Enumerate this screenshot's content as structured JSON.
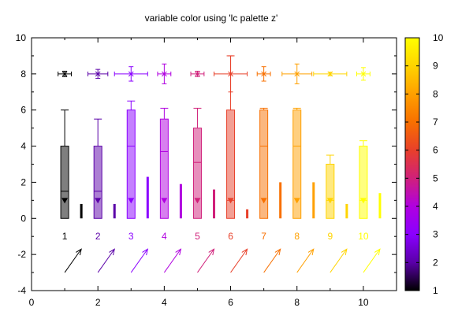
{
  "chart_data": {
    "type": "box",
    "title": "variable color using 'lc palette z'",
    "xlim": [
      0,
      11
    ],
    "ylim": [
      -4,
      10
    ],
    "xticks": [
      "0",
      "2",
      "4",
      "6",
      "8",
      "10"
    ],
    "yticks": [
      "-4",
      "-2",
      "0",
      "2",
      "4",
      "6",
      "8",
      "10"
    ],
    "colorbar": {
      "range": [
        1,
        10
      ],
      "ticks": [
        "1",
        "2",
        "3",
        "4",
        "5",
        "6",
        "7",
        "8",
        "9",
        "10"
      ],
      "palette": [
        "#000000",
        "#5a00a8",
        "#8a00ff",
        "#b000e0",
        "#d0207a",
        "#e8402a",
        "#f87000",
        "#ffa000",
        "#ffd400",
        "#ffff00"
      ]
    },
    "box_series": [
      {
        "x": 1,
        "z": 1,
        "low": 0,
        "q1": 0,
        "median": 1.5,
        "q3": 4,
        "high": 6,
        "marker": 1,
        "label": "1"
      },
      {
        "x": 2,
        "z": 2,
        "low": 0,
        "q1": 0,
        "median": 1.5,
        "q3": 4,
        "high": 5.5,
        "marker": 1,
        "label": "2"
      },
      {
        "x": 3,
        "z": 3,
        "low": 0,
        "q1": 0,
        "median": 4.0,
        "q3": 6,
        "high": 6.5,
        "marker": 1,
        "label": "3"
      },
      {
        "x": 4,
        "z": 4,
        "low": 0,
        "q1": 0,
        "median": 3.7,
        "q3": 5.5,
        "high": 6.1,
        "marker": 1,
        "label": "4"
      },
      {
        "x": 5,
        "z": 5,
        "low": 0,
        "q1": 0,
        "median": 3.1,
        "q3": 5,
        "high": 6.1,
        "marker": 1,
        "label": "5"
      },
      {
        "x": 6,
        "z": 6,
        "low": 0,
        "q1": 0,
        "median": 1.0,
        "q3": 6,
        "high": 9.0,
        "marker": 1,
        "label": "6"
      },
      {
        "x": 7,
        "z": 7,
        "low": 0,
        "q1": 0,
        "median": 4.0,
        "q3": 6,
        "high": 6.1,
        "marker": 1,
        "label": "7"
      },
      {
        "x": 8,
        "z": 8,
        "low": 0,
        "q1": 0,
        "median": 4.0,
        "q3": 6,
        "high": 6.1,
        "marker": 1,
        "label": "8"
      },
      {
        "x": 9,
        "z": 9,
        "low": 0,
        "q1": 0,
        "median": 1.0,
        "q3": 3,
        "high": 3.5,
        "marker": 1,
        "label": "9"
      },
      {
        "x": 10,
        "z": 10,
        "low": 0,
        "q1": 0,
        "median": 1.0,
        "q3": 4,
        "high": 4.3,
        "marker": 1,
        "label": "10"
      }
    ],
    "impulse_series": [
      {
        "x": 1.5,
        "y": 0.8,
        "z": 1
      },
      {
        "x": 2.5,
        "y": 0.8,
        "z": 2
      },
      {
        "x": 3.5,
        "y": 2.3,
        "z": 3
      },
      {
        "x": 4.5,
        "y": 1.9,
        "z": 4
      },
      {
        "x": 5.5,
        "y": 1.6,
        "z": 5
      },
      {
        "x": 6.5,
        "y": 0.5,
        "z": 6
      },
      {
        "x": 7.5,
        "y": 2.0,
        "z": 7
      },
      {
        "x": 8.5,
        "y": 2.0,
        "z": 8
      },
      {
        "x": 9.5,
        "y": 0.8,
        "z": 9
      },
      {
        "x": 10.5,
        "y": 1.4,
        "z": 10
      }
    ],
    "xyerror_series": [
      {
        "x": 1,
        "y": 8,
        "xerr": 0.2,
        "yerr": 0.15,
        "z": 1
      },
      {
        "x": 2,
        "y": 8,
        "xerr": 0.3,
        "yerr": 0.25,
        "z": 2
      },
      {
        "x": 3,
        "y": 8,
        "xerr": 0.5,
        "yerr": 0.4,
        "z": 3
      },
      {
        "x": 4,
        "y": 8,
        "xerr": 0.2,
        "yerr": 0.55,
        "z": 4
      },
      {
        "x": 5,
        "y": 8,
        "xerr": 0.2,
        "yerr": 0.15,
        "z": 5
      },
      {
        "x": 6,
        "y": 8,
        "xerr": 0.5,
        "yerr": 1.0,
        "z": 6
      },
      {
        "x": 7,
        "y": 8,
        "xerr": 0.2,
        "yerr": 0.4,
        "z": 7
      },
      {
        "x": 8,
        "y": 8,
        "xerr": 0.45,
        "yerr": 0.55,
        "z": 8
      },
      {
        "x": 9,
        "y": 8,
        "xerr": 0.5,
        "yerr": 0.1,
        "z": 9
      },
      {
        "x": 10,
        "y": 8,
        "xerr": 0.2,
        "yerr": 0.35,
        "z": 10
      }
    ],
    "point_labels": [
      {
        "x": 1,
        "y": -1,
        "text": "1",
        "z": 1
      },
      {
        "x": 2,
        "y": -1,
        "text": "2",
        "z": 2
      },
      {
        "x": 3,
        "y": -1,
        "text": "3",
        "z": 3
      },
      {
        "x": 4,
        "y": -1,
        "text": "4",
        "z": 4
      },
      {
        "x": 5,
        "y": -1,
        "text": "5",
        "z": 5
      },
      {
        "x": 6,
        "y": -1,
        "text": "6",
        "z": 6
      },
      {
        "x": 7,
        "y": -1,
        "text": "7",
        "z": 7
      },
      {
        "x": 8,
        "y": -1,
        "text": "8",
        "z": 8
      },
      {
        "x": 9,
        "y": -1,
        "text": "9",
        "z": 9
      },
      {
        "x": 10,
        "y": -1,
        "text": "10",
        "z": 10
      }
    ],
    "vector_series": [
      {
        "x": 1,
        "y": -3,
        "dx": 0.5,
        "dy": 1.3,
        "z": 1
      },
      {
        "x": 2,
        "y": -3,
        "dx": 0.5,
        "dy": 1.3,
        "z": 2
      },
      {
        "x": 3,
        "y": -3,
        "dx": 0.5,
        "dy": 1.3,
        "z": 3
      },
      {
        "x": 4,
        "y": -3,
        "dx": 0.5,
        "dy": 1.3,
        "z": 4
      },
      {
        "x": 5,
        "y": -3,
        "dx": 0.5,
        "dy": 1.3,
        "z": 5
      },
      {
        "x": 6,
        "y": -3,
        "dx": 0.5,
        "dy": 1.3,
        "z": 6
      },
      {
        "x": 7,
        "y": -3,
        "dx": 0.5,
        "dy": 1.3,
        "z": 7
      },
      {
        "x": 8,
        "y": -3,
        "dx": 0.5,
        "dy": 1.3,
        "z": 8
      },
      {
        "x": 9,
        "y": -3,
        "dx": 0.5,
        "dy": 1.3,
        "z": 9
      },
      {
        "x": 10,
        "y": -3,
        "dx": 0.5,
        "dy": 1.3,
        "z": 10
      }
    ],
    "grid": false,
    "legend": "none"
  }
}
